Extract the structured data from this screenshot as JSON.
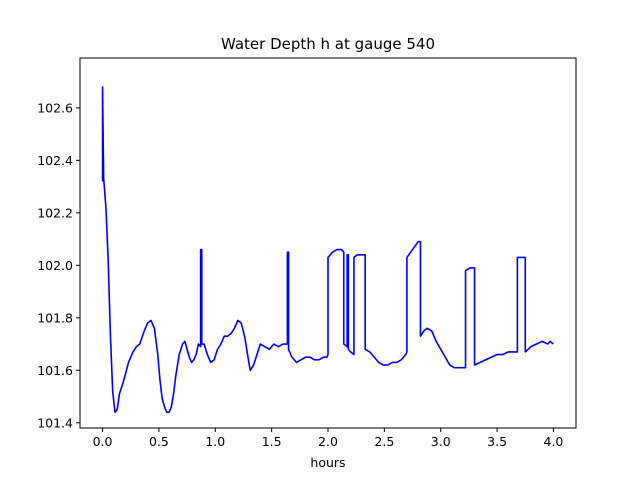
{
  "chart_data": {
    "type": "line",
    "title": "Water Depth h at gauge 540",
    "xlabel": "hours",
    "ylabel": "",
    "xlim": [
      -0.2,
      4.2
    ],
    "ylim": [
      101.38,
      102.79
    ],
    "xticks": [
      0.0,
      0.5,
      1.0,
      1.5,
      2.0,
      2.5,
      3.0,
      3.5,
      4.0
    ],
    "xtick_labels": [
      "0.0",
      "0.5",
      "1.0",
      "1.5",
      "2.0",
      "2.5",
      "3.0",
      "3.5",
      "4.0"
    ],
    "yticks": [
      101.4,
      101.6,
      101.8,
      102.0,
      102.2,
      102.4,
      102.6
    ],
    "ytick_labels": [
      "101.4",
      "101.6",
      "101.8",
      "102.0",
      "102.2",
      "102.4",
      "102.6"
    ],
    "grid": false,
    "legend": "none",
    "series": [
      {
        "color": "#0000ff",
        "x": [
          0.0,
          0.0,
          0.01,
          0.01,
          0.03,
          0.05,
          0.07,
          0.09,
          0.11,
          0.13,
          0.15,
          0.18,
          0.2,
          0.23,
          0.27,
          0.3,
          0.33,
          0.37,
          0.4,
          0.43,
          0.46,
          0.49,
          0.51,
          0.53,
          0.55,
          0.57,
          0.59,
          0.61,
          0.63,
          0.65,
          0.68,
          0.71,
          0.73,
          0.75,
          0.77,
          0.79,
          0.81,
          0.83,
          0.85,
          0.87,
          0.87,
          0.88,
          0.88,
          0.9,
          0.93,
          0.96,
          0.99,
          1.02,
          1.05,
          1.08,
          1.11,
          1.14,
          1.17,
          1.2,
          1.23,
          1.26,
          1.29,
          1.31,
          1.34,
          1.37,
          1.4,
          1.44,
          1.48,
          1.52,
          1.56,
          1.6,
          1.63,
          1.64,
          1.64,
          1.65,
          1.65,
          1.68,
          1.72,
          1.76,
          1.8,
          1.84,
          1.88,
          1.92,
          1.96,
          1.99,
          2.0,
          2.0,
          2.04,
          2.08,
          2.12,
          2.14,
          2.14,
          2.17,
          2.17,
          2.18,
          2.18,
          2.2,
          2.23,
          2.23,
          2.26,
          2.3,
          2.33,
          2.33,
          2.37,
          2.41,
          2.45,
          2.49,
          2.53,
          2.57,
          2.61,
          2.65,
          2.69,
          2.7,
          2.7,
          2.75,
          2.8,
          2.82,
          2.82,
          2.85,
          2.88,
          2.92,
          2.96,
          3.0,
          3.04,
          3.08,
          3.12,
          3.16,
          3.2,
          3.22,
          3.22,
          3.26,
          3.3,
          3.3,
          3.35,
          3.4,
          3.45,
          3.5,
          3.55,
          3.6,
          3.65,
          3.68,
          3.68,
          3.72,
          3.75,
          3.75,
          3.8,
          3.85,
          3.9,
          3.95,
          3.97,
          4.0
        ],
        "y": [
          102.32,
          102.68,
          102.32,
          102.33,
          102.22,
          102.02,
          101.73,
          101.52,
          101.44,
          101.45,
          101.51,
          101.55,
          101.58,
          101.63,
          101.67,
          101.69,
          101.7,
          101.75,
          101.78,
          101.79,
          101.76,
          101.66,
          101.56,
          101.49,
          101.46,
          101.44,
          101.44,
          101.46,
          101.51,
          101.58,
          101.66,
          101.7,
          101.71,
          101.68,
          101.65,
          101.63,
          101.64,
          101.66,
          101.7,
          101.69,
          102.06,
          102.06,
          101.7,
          101.7,
          101.66,
          101.63,
          101.64,
          101.68,
          101.7,
          101.73,
          101.73,
          101.74,
          101.76,
          101.79,
          101.78,
          101.73,
          101.65,
          101.6,
          101.62,
          101.66,
          101.7,
          101.69,
          101.68,
          101.7,
          101.69,
          101.7,
          101.7,
          101.7,
          102.05,
          102.05,
          101.68,
          101.65,
          101.63,
          101.64,
          101.65,
          101.65,
          101.64,
          101.64,
          101.65,
          101.65,
          101.66,
          102.03,
          102.05,
          102.06,
          102.06,
          102.05,
          101.7,
          101.69,
          102.04,
          102.04,
          101.68,
          101.67,
          101.66,
          102.03,
          102.04,
          102.04,
          102.04,
          101.68,
          101.67,
          101.65,
          101.63,
          101.62,
          101.62,
          101.63,
          101.63,
          101.64,
          101.66,
          101.67,
          102.03,
          102.06,
          102.09,
          102.09,
          101.73,
          101.75,
          101.76,
          101.75,
          101.71,
          101.68,
          101.65,
          101.62,
          101.61,
          101.61,
          101.61,
          101.61,
          101.98,
          101.99,
          101.99,
          101.62,
          101.63,
          101.64,
          101.65,
          101.66,
          101.66,
          101.67,
          101.67,
          101.67,
          102.03,
          102.03,
          102.03,
          101.67,
          101.69,
          101.7,
          101.71,
          101.7,
          101.71,
          101.7
        ]
      }
    ]
  }
}
